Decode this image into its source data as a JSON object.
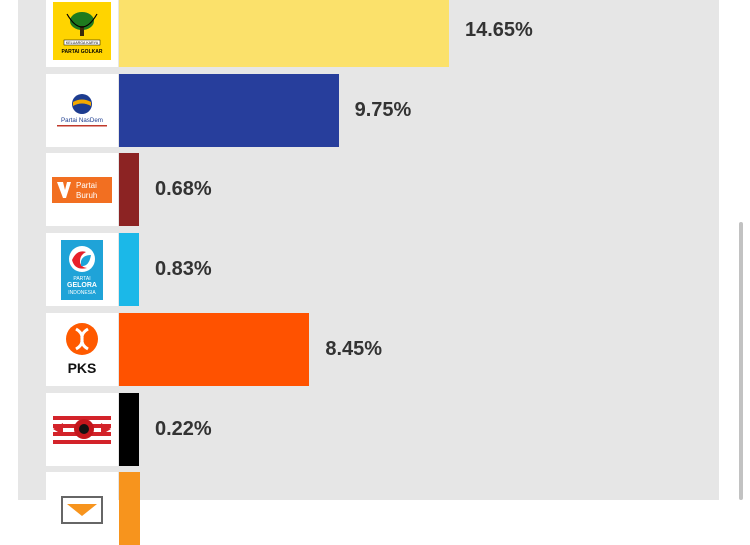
{
  "chart_data": {
    "type": "bar",
    "orientation": "horizontal",
    "categories": [
      "Partai Golkar",
      "Partai NasDem",
      "Partai Buruh",
      "Partai Gelora Indonesia",
      "PKS",
      "PKN",
      "Partai Hanura"
    ],
    "values": [
      14.65,
      9.75,
      0.68,
      0.83,
      8.45,
      0.22,
      null
    ],
    "labels": [
      "14.65%",
      "9.75%",
      "0.68%",
      "0.83%",
      "8.45%",
      "0.22%",
      ""
    ],
    "colors": [
      "#fbe16b",
      "#273e9c",
      "#8c2323",
      "#1bb8e8",
      "#ff5200",
      "#000000",
      "#f7941d"
    ]
  },
  "logos": {
    "golkar": {
      "icon": "golkar-banyan-tree-icon",
      "text": "PARTAI GOLKAR",
      "subtext": "KELUARGA KARYA"
    },
    "nasdem": {
      "icon": "nasdem-globe-icon",
      "text": "Partai NasDem"
    },
    "buruh": {
      "icon": "buruh-logo-icon",
      "text_1": "Partai",
      "text_2": "Buruh"
    },
    "gelora": {
      "icon": "gelora-wave-icon",
      "text_1": "PARTAI",
      "text_2": "GELORA",
      "text_3": "INDONESIA"
    },
    "pks": {
      "icon": "pks-crescent-icon",
      "text": "PKS"
    },
    "pkn": {
      "icon": "pkn-flag-icon"
    },
    "hanura": {
      "icon": "hanura-logo-icon"
    }
  }
}
